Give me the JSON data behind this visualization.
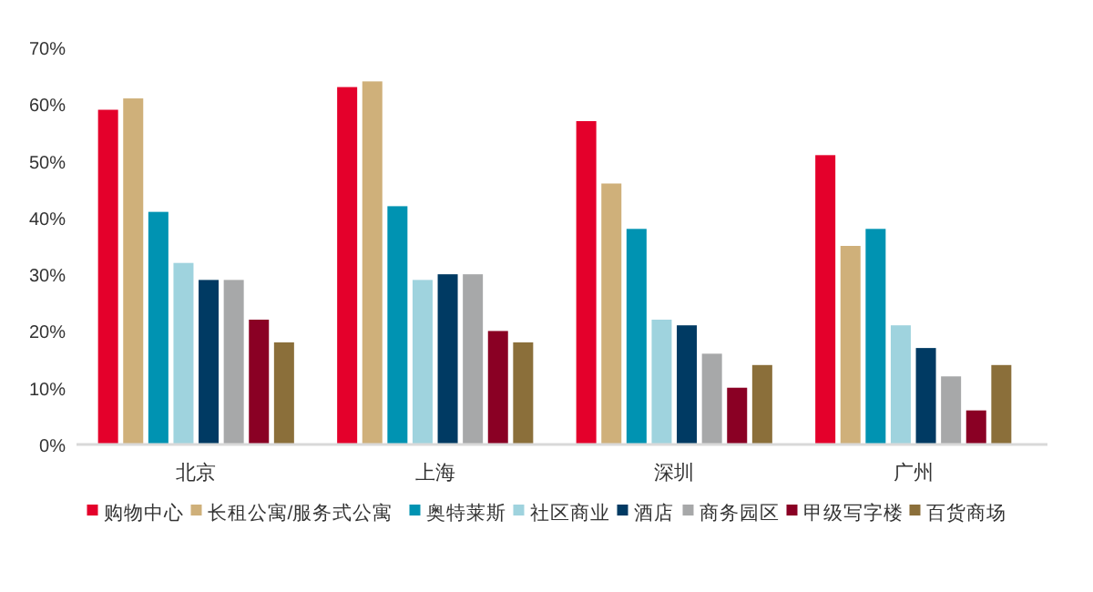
{
  "chart_data": {
    "type": "bar",
    "categories": [
      "北京",
      "上海",
      "深圳",
      "广州"
    ],
    "series": [
      {
        "name": "购物中心",
        "color": "#e4002b",
        "values": [
          59,
          63,
          57,
          51
        ]
      },
      {
        "name": "长租公寓/服务式公寓",
        "color": "#cfb07a",
        "values": [
          61,
          64,
          46,
          35
        ]
      },
      {
        "name": "奥特莱斯",
        "color": "#0093b2",
        "values": [
          41,
          42,
          38,
          38
        ]
      },
      {
        "name": "社区商业",
        "color": "#9fd3de",
        "values": [
          32,
          29,
          22,
          21
        ]
      },
      {
        "name": "酒店",
        "color": "#003a63",
        "values": [
          29,
          30,
          21,
          17
        ]
      },
      {
        "name": "商务园区",
        "color": "#a7a8a9",
        "values": [
          29,
          30,
          16,
          12
        ]
      },
      {
        "name": "甲级写字楼",
        "color": "#8a0024",
        "values": [
          22,
          20,
          10,
          6
        ]
      },
      {
        "name": "百货商场",
        "color": "#8b6f3a",
        "values": [
          18,
          18,
          14,
          14
        ]
      }
    ],
    "ylim": [
      0,
      70
    ],
    "yticks": [
      {
        "value": 0,
        "label": "0%"
      },
      {
        "value": 10,
        "label": "10%"
      },
      {
        "value": 20,
        "label": "20%"
      },
      {
        "value": 30,
        "label": "30%"
      },
      {
        "value": 40,
        "label": "40%"
      },
      {
        "value": 50,
        "label": "50%"
      },
      {
        "value": 60,
        "label": "60%"
      },
      {
        "value": 70,
        "label": "70%"
      }
    ],
    "grid": false,
    "legend": "bottom"
  }
}
